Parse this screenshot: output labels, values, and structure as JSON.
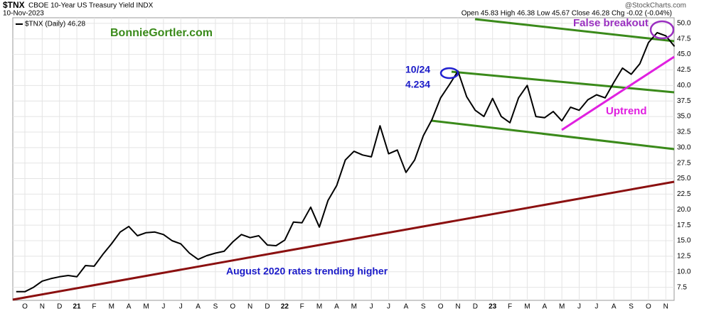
{
  "chart_data": {
    "type": "line",
    "symbol": "$TNX",
    "title": "CBOE 10-Year US Treasury Yield INDX",
    "date": "10-Nov-2023",
    "header_stats": "Open 45.83  High 46.38  Low 45.67  Close 46.28  Chg -0.02 (-0.04%)",
    "source": "@StockCharts.com",
    "watermark": "BonnieGortler.com",
    "annotations": [
      "10/24",
      "4.234",
      "False breakout",
      "Uptrend",
      "August 2020 rates trending higher"
    ],
    "categories": [
      null,
      "O",
      null,
      "N",
      null,
      "D",
      null,
      "21",
      null,
      "F",
      null,
      "M",
      null,
      "A",
      null,
      "M",
      null,
      "J",
      null,
      "J",
      null,
      "A",
      null,
      "S",
      null,
      "O",
      null,
      "N",
      null,
      "D",
      null,
      "22",
      null,
      "F",
      null,
      "M",
      null,
      "A",
      null,
      "M",
      null,
      "J",
      null,
      "J",
      null,
      "A",
      null,
      "S",
      null,
      "O",
      null,
      "N",
      null,
      "D",
      null,
      "23",
      null,
      "F",
      null,
      "M",
      null,
      "A",
      null,
      "M",
      null,
      "J",
      null,
      "J",
      null,
      "A",
      null,
      "S",
      null,
      "O",
      null,
      "N",
      null
    ],
    "series": [
      {
        "name": "$TNX (Daily) 46.28",
        "color": "#000000",
        "values": [
          6.8,
          6.8,
          7.5,
          8.5,
          8.9,
          9.2,
          9.4,
          9.2,
          11.0,
          10.9,
          12.8,
          14.5,
          16.4,
          17.3,
          15.8,
          16.3,
          16.4,
          16.0,
          15.0,
          14.5,
          13.0,
          12.0,
          12.6,
          13.0,
          13.3,
          14.8,
          16.0,
          15.5,
          15.8,
          14.3,
          14.2,
          15.1,
          18.0,
          17.9,
          20.4,
          17.2,
          21.5,
          23.9,
          28.0,
          29.4,
          28.8,
          28.5,
          33.5,
          29.0,
          29.6,
          26.0,
          28.0,
          31.9,
          34.5,
          38.0,
          40.1,
          42.3,
          38.2,
          36.0,
          35.0,
          37.9,
          35.0,
          34.0,
          38.0,
          40.0,
          35.0,
          34.8,
          35.8,
          34.3,
          36.5,
          36.0,
          37.7,
          38.5,
          38.0,
          40.5,
          42.8,
          41.8,
          43.5,
          46.9,
          48.5,
          48.0,
          46.28
        ]
      }
    ],
    "ylim": [
      5.4,
      50.9
    ],
    "yticks": [
      7.5,
      {
        "value": 10,
        "label": "10.0"
      },
      12.5,
      {
        "value": 15,
        "label": "15.0"
      },
      17.5,
      {
        "value": 20,
        "label": "20.0"
      },
      22.5,
      {
        "value": 25,
        "label": "25.0"
      },
      27.5,
      {
        "value": 30,
        "label": "30.0"
      },
      32.5,
      {
        "value": 35,
        "label": "35.0"
      },
      37.5,
      {
        "value": 40,
        "label": "40.0"
      },
      42.5,
      {
        "value": 45,
        "label": "45.0"
      },
      47.5,
      {
        "value": 50,
        "label": "50.0"
      }
    ],
    "grid": true
  }
}
